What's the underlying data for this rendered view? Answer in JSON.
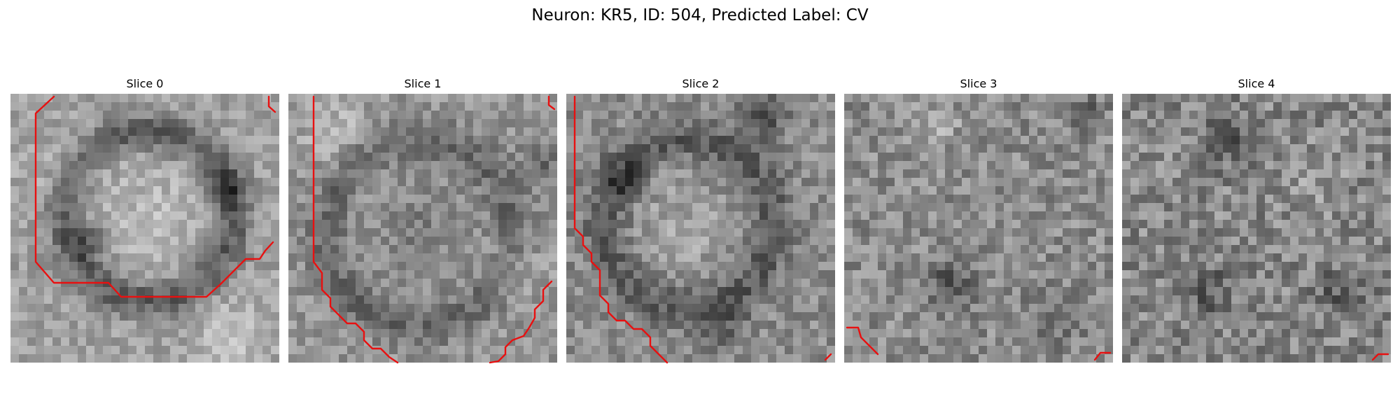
{
  "figure": {
    "title": "Neuron: KR5, ID: 504, Predicted Label: CV",
    "contour_color": "#e81010",
    "colormap": "gray"
  },
  "slices": [
    {
      "title": "Slice 0"
    },
    {
      "title": "Slice 1"
    },
    {
      "title": "Slice 2"
    },
    {
      "title": "Slice 3"
    },
    {
      "title": "Slice 4"
    }
  ]
}
